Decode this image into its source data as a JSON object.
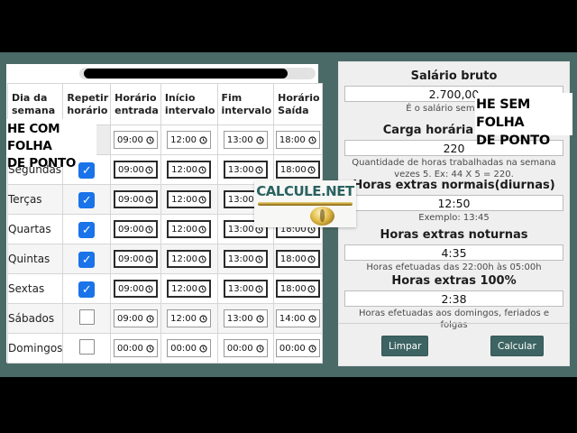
{
  "app": {
    "name": "CALCULE.NET"
  },
  "colors": {
    "background_teal": "#4a6a68",
    "letterbox_black": "#000000",
    "logo_teal": "#2a6260",
    "button_teal": "#3d6462",
    "checkbox_blue": "#1a73e8",
    "gold": "#c8a23a"
  },
  "captions": {
    "left_line1": "HE COM FOLHA",
    "left_line2": "DE PONTO",
    "right_line1": "HE SEM FOLHA",
    "right_line2": "DE PONTO"
  },
  "logo": {
    "text": "CALCULE.NET"
  },
  "icons": {
    "check": "✓",
    "clock": "clock-icon"
  },
  "timesheet": {
    "columns": [
      "Dia da semana",
      "Repetir horário",
      "Horário entrada",
      "Início intervalo",
      "Fim intervalo",
      "Horário Saída"
    ],
    "rows": [
      {
        "day": "",
        "checkbox": "none",
        "times": [
          "09:00",
          "12:00",
          "13:00",
          "18:00"
        ]
      },
      {
        "day": "Segundas",
        "checkbox": "checked",
        "times": [
          "09:00",
          "12:00",
          "13:00",
          "18:00"
        ]
      },
      {
        "day": "Terças",
        "checkbox": "checked",
        "times": [
          "09:00",
          "12:00",
          "13:00",
          "18:00"
        ]
      },
      {
        "day": "Quartas",
        "checkbox": "checked",
        "times": [
          "09:00",
          "12:00",
          "13:00",
          "18:00"
        ]
      },
      {
        "day": "Quintas",
        "checkbox": "checked",
        "times": [
          "09:00",
          "12:00",
          "13:00",
          "18:00"
        ]
      },
      {
        "day": "Sextas",
        "checkbox": "checked",
        "times": [
          "09:00",
          "12:00",
          "13:00",
          "18:00"
        ]
      },
      {
        "day": "Sábados",
        "checkbox": "unchecked",
        "times": [
          "09:00",
          "12:00",
          "13:00",
          "14:00"
        ]
      },
      {
        "day": "Domingos",
        "checkbox": "unchecked",
        "times": [
          "00:00",
          "00:00",
          "00:00",
          "00:00"
        ]
      }
    ]
  },
  "calculator": {
    "fields": [
      {
        "label": "Salário bruto",
        "value": "2.700,00",
        "hint": "É o salário sem os de"
      },
      {
        "label": "Carga horária mensal",
        "value": "220",
        "hint": "Quantidade de horas trabalhadas na semana vezes 5. Ex: 44 X 5 = 220."
      },
      {
        "label": "Horas extras normais(diurnas)",
        "value": "12:50",
        "hint": "Exemplo: 13:45"
      },
      {
        "label": "Horas extras noturnas",
        "value": "4:35",
        "hint": "Horas efetuadas das 22:00h às 05:00h"
      },
      {
        "label": "Horas extras 100%",
        "value": "2:38",
        "hint": "Horas efetuadas aos domingos, feriados e folgas"
      }
    ],
    "buttons": {
      "clear": "Limpar",
      "calculate": "Calcular"
    }
  }
}
